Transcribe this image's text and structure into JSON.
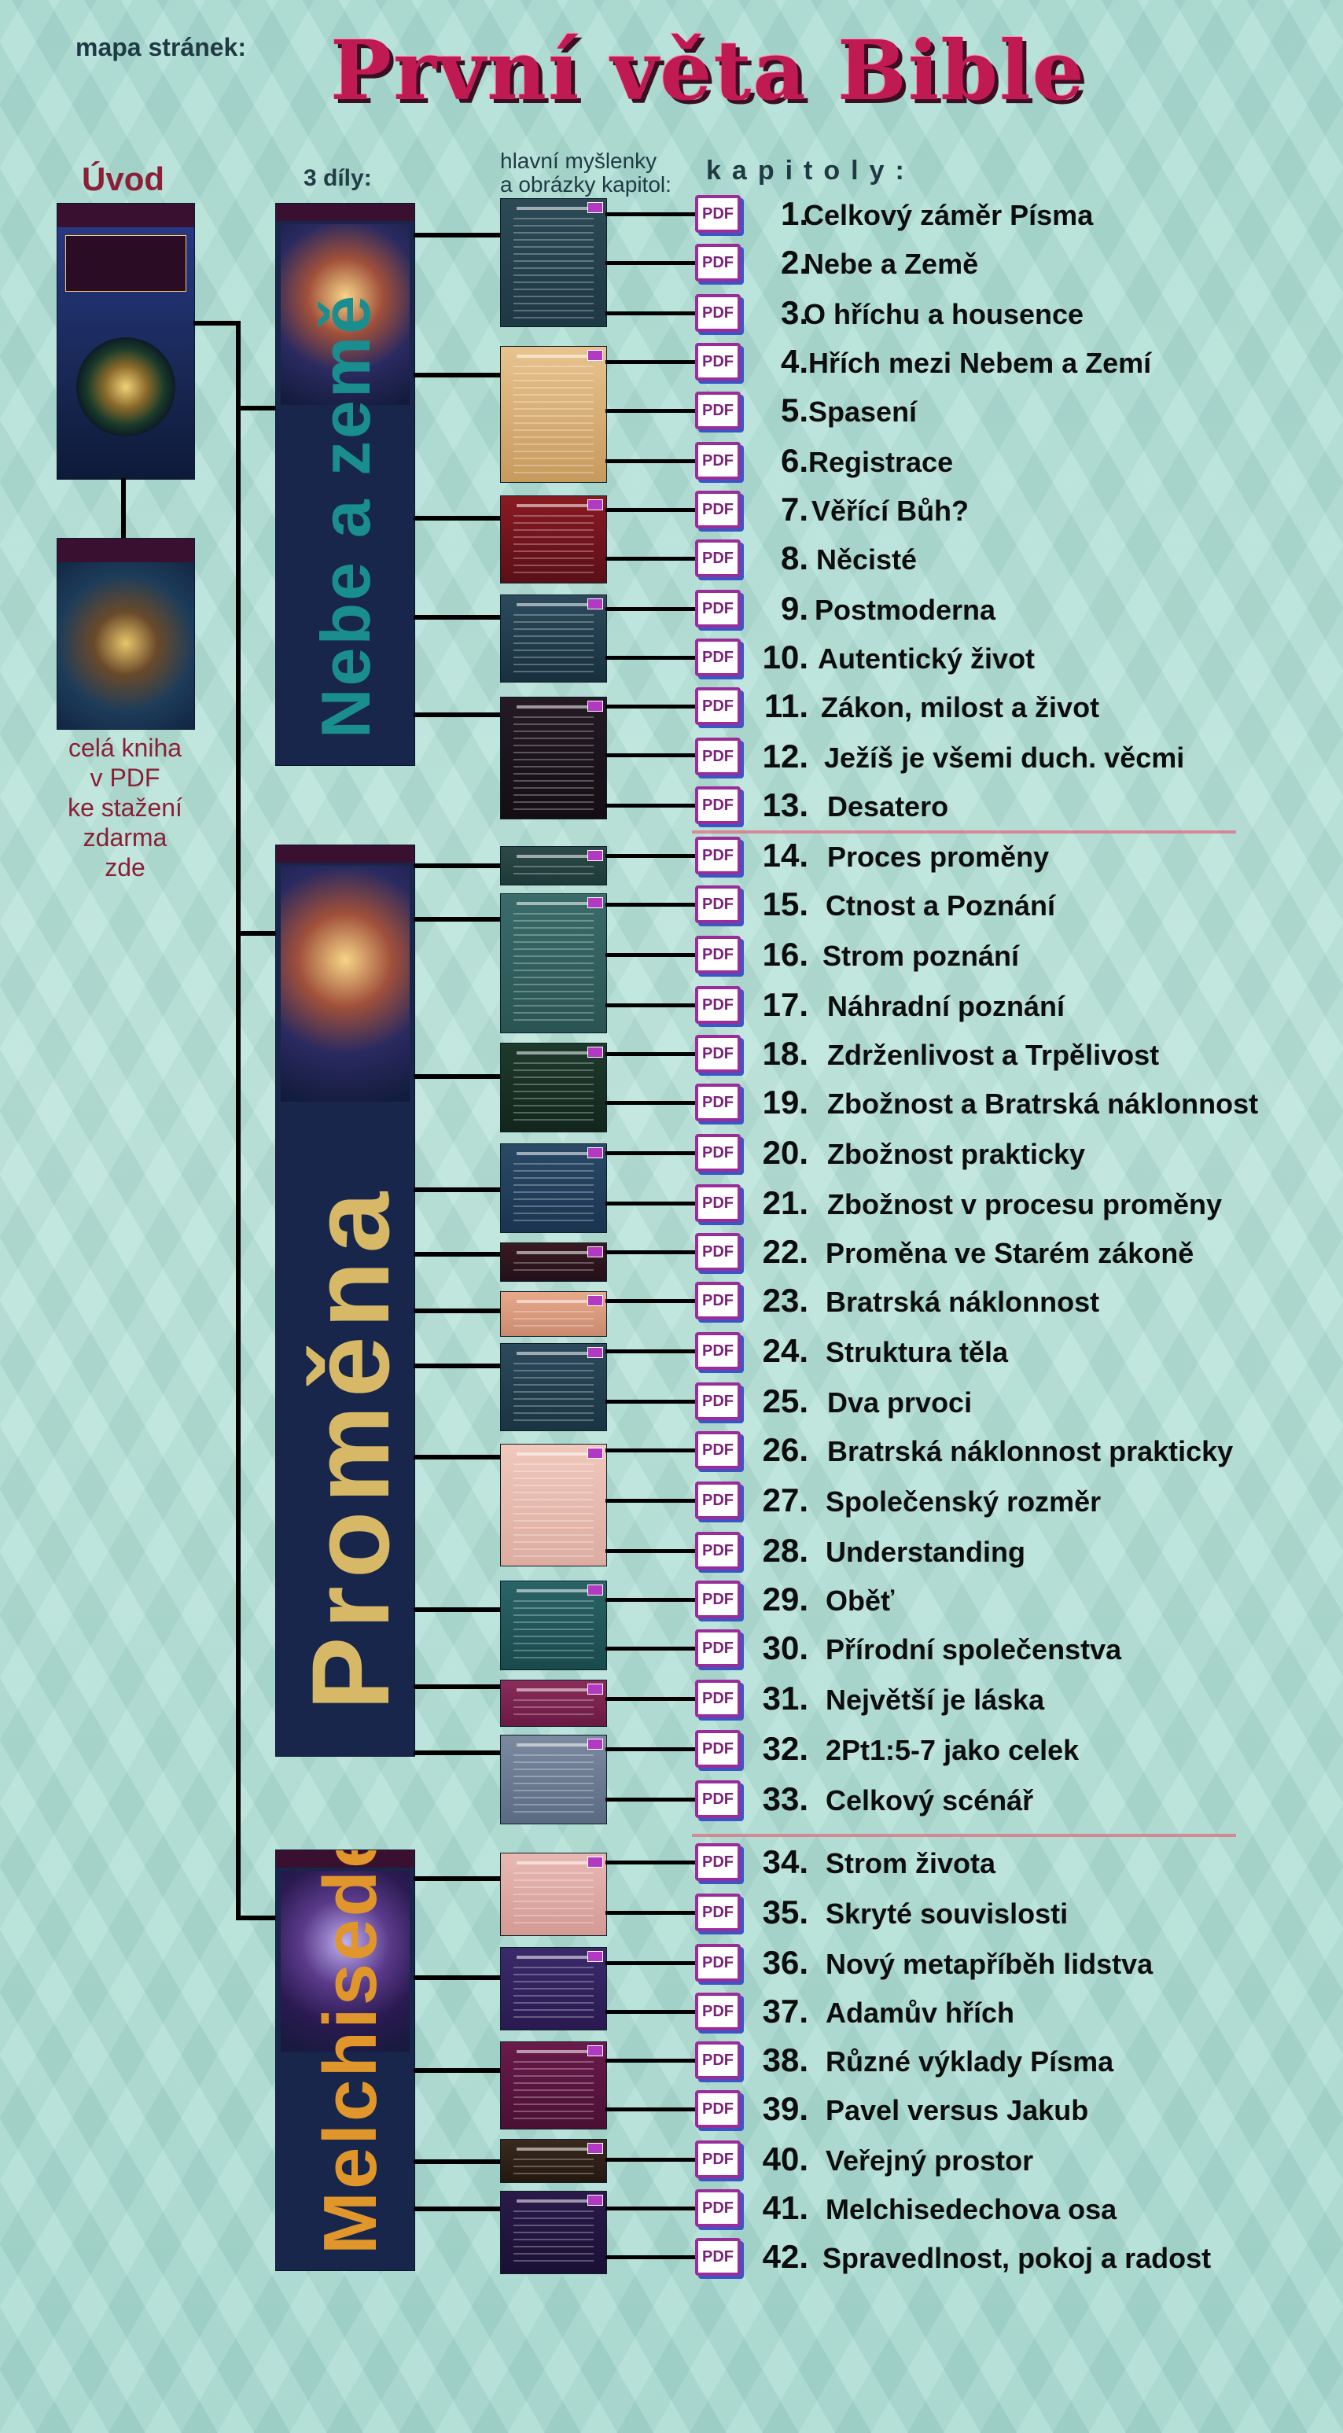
{
  "header": {
    "sitemap_label": "mapa stránek:",
    "title": "První věta Bible"
  },
  "columns": {
    "intro": "Úvod",
    "parts": "3 díly:",
    "ideas": [
      "hlavní myšlenky",
      "a obrázky kapitol:"
    ],
    "chapters": "kapitoly:"
  },
  "intro": {
    "full_book_lines": [
      "celá kniha",
      "v PDF",
      "ke stažení",
      "zdarma",
      "zde"
    ]
  },
  "parts": [
    {
      "title": "Nebe a země",
      "color": "#1a8e8f"
    },
    {
      "title": "Proměna",
      "color": "#d7b866"
    },
    {
      "title": "Melchisedech",
      "color": "#e0962a"
    }
  ],
  "pdf_label": "PDF",
  "chapters": [
    {
      "num": "1.",
      "title": "Celkový záměr Písma"
    },
    {
      "num": "2.",
      "title": "Nebe a Země"
    },
    {
      "num": "3.",
      "title": "O hříchu a housence"
    },
    {
      "num": "4.",
      "title": "Hřích mezi Nebem a Zemí"
    },
    {
      "num": "5.",
      "title": "Spasení"
    },
    {
      "num": "6.",
      "title": "Registrace"
    },
    {
      "num": "7.",
      "title": "Věřící Bůh?"
    },
    {
      "num": "8.",
      "title": "Něcisté"
    },
    {
      "num": "9.",
      "title": "Postmoderna"
    },
    {
      "num": "10.",
      "title": "Autentický život"
    },
    {
      "num": "11.",
      "title": "Zákon, milost a život"
    },
    {
      "num": "12.",
      "title": "Ježíš je všemi duch. věcmi"
    },
    {
      "num": "13.",
      "title": "Desatero"
    },
    {
      "num": "14.",
      "title": "Proces proměny"
    },
    {
      "num": "15.",
      "title": "Ctnost a Poznání"
    },
    {
      "num": "16.",
      "title": "Strom poznání"
    },
    {
      "num": "17.",
      "title": "Náhradní poznání"
    },
    {
      "num": "18.",
      "title": "Zdrženlivost a Trpělivost"
    },
    {
      "num": "19.",
      "title": "Zbožnost a Bratrská náklonnost"
    },
    {
      "num": "20.",
      "title": "Zbožnost prakticky"
    },
    {
      "num": "21.",
      "title": "Zbožnost v procesu proměny"
    },
    {
      "num": "22.",
      "title": "Proměna ve Starém zákoně"
    },
    {
      "num": "23.",
      "title": "Bratrská náklonnost"
    },
    {
      "num": "24.",
      "title": "Struktura těla"
    },
    {
      "num": "25.",
      "title": "Dva prvoci"
    },
    {
      "num": "26.",
      "title": "Bratrská náklonnost prakticky"
    },
    {
      "num": "27.",
      "title": "Společenský rozměr"
    },
    {
      "num": "28.",
      "title": "Understanding"
    },
    {
      "num": "29.",
      "title": "Oběť"
    },
    {
      "num": "30.",
      "title": "Přírodní společenstva"
    },
    {
      "num": "31.",
      "title": "Největší je láska"
    },
    {
      "num": "32.",
      "title": "2Pt1:5-7 jako celek"
    },
    {
      "num": "33.",
      "title": "Celkový scénář"
    },
    {
      "num": "34.",
      "title": "Strom života"
    },
    {
      "num": "35.",
      "title": "Skryté souvislosti"
    },
    {
      "num": "36.",
      "title": "Nový metapříběh lidstva"
    },
    {
      "num": "37.",
      "title": "Adamův hřích"
    },
    {
      "num": "38.",
      "title": "Různé výklady Písma"
    },
    {
      "num": "39.",
      "title": "Pavel versus Jakub"
    },
    {
      "num": "40.",
      "title": "Veřejný prostor"
    },
    {
      "num": "41.",
      "title": "Melchisedechova osa"
    },
    {
      "num": "42.",
      "title": "Spravedlnost, pokoj a radost"
    }
  ]
}
